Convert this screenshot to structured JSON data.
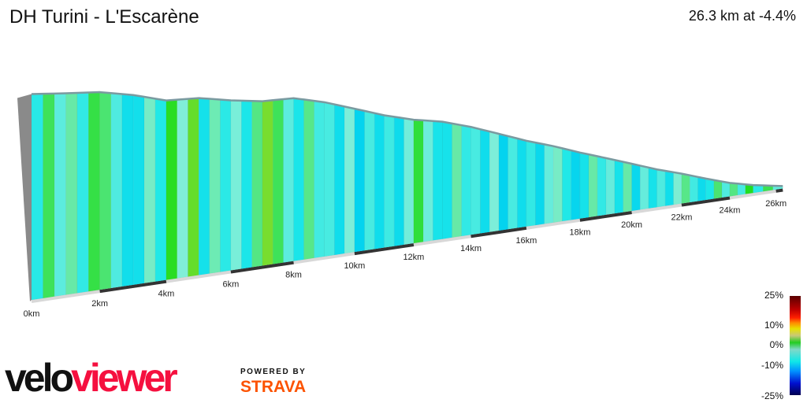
{
  "header": {
    "title": "DH Turini - L'Escarène",
    "summary": "26.3 km at -4.4%"
  },
  "chart_data": {
    "type": "area",
    "title": "DH Turini - L'Escarène",
    "xlabel": "",
    "ylabel": "",
    "x_unit": "km",
    "x_ticks": [
      "0km",
      "2km",
      "4km",
      "6km",
      "8km",
      "10km",
      "12km",
      "14km",
      "16km",
      "18km",
      "20km",
      "22km",
      "24km",
      "26km"
    ],
    "distance_km": [
      0,
      1,
      2,
      3,
      4,
      5,
      6,
      7,
      8,
      9,
      10,
      11,
      12,
      13,
      14,
      15,
      16,
      17,
      18,
      19,
      20,
      21,
      22,
      23,
      24,
      25,
      26.3
    ],
    "elevation_m": [
      1600,
      1575,
      1553,
      1508,
      1449,
      1435,
      1395,
      1363,
      1354,
      1305,
      1242,
      1179,
      1129,
      1093,
      1039,
      976,
      913,
      859,
      800,
      746,
      692,
      638,
      593,
      544,
      499,
      467,
      436
    ],
    "color_by": "gradient",
    "gradient_legend": {
      "ticks": [
        "25%",
        "10%",
        "0%",
        "-10%",
        "-25%"
      ],
      "range": [
        -25,
        25
      ]
    }
  },
  "branding": {
    "logo_velo": "velo",
    "logo_viewer": "viewer",
    "powered_by": "POWERED BY",
    "strava": "STRAVA"
  },
  "colors": {
    "logo_red": "#f5103f",
    "strava_orange": "#fc5200"
  }
}
